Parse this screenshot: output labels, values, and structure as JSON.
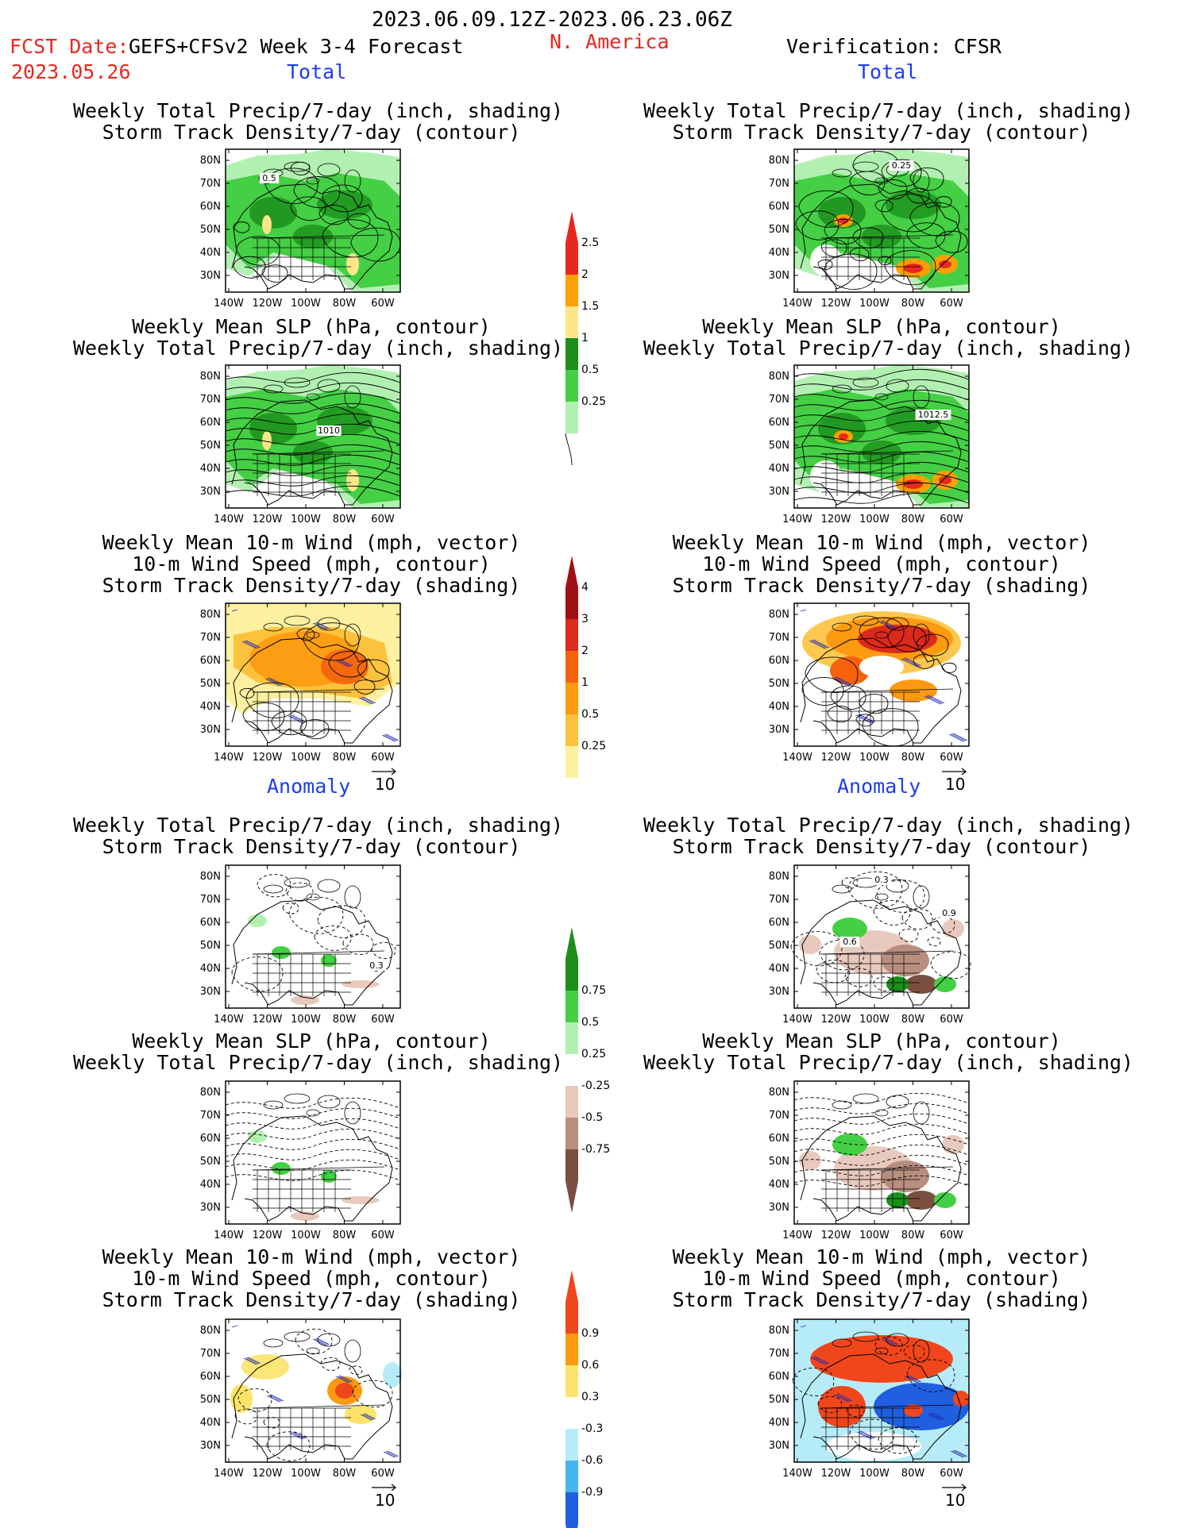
{
  "header": {
    "date_range": "2023.06.09.12Z-2023.06.23.06Z",
    "fcst_label": "FCST Date:",
    "model": "GEFS+CFSv2 Week 3-4 Forecast",
    "region": "N. America",
    "fcst_date": "2023.05.26",
    "verification": "Verification: CFSR"
  },
  "sections": {
    "total": "Total",
    "anomaly": "Anomaly"
  },
  "titles": {
    "precip_storm": [
      "Weekly Total Precip/7-day (inch, shading)",
      "Storm Track Density/7-day (contour)"
    ],
    "slp_precip": [
      "Weekly Mean SLP (hPa, contour)",
      "Weekly Total Precip/7-day (inch, shading)"
    ],
    "wind_storm": [
      "Weekly Mean 10-m Wind (mph, vector)",
      "10-m Wind Speed (mph, contour)",
      "Storm Track Density/7-day (shading)"
    ]
  },
  "axes": {
    "lat_ticks": [
      "80N",
      "70N",
      "60N",
      "50N",
      "40N",
      "30N"
    ],
    "lon_ticks": [
      "140W",
      "120W",
      "100W",
      "80W",
      "60W"
    ]
  },
  "map_labels": {
    "fc_total_precip": "0.5",
    "fc_total_slp": "1010",
    "ver_total_precip": "0.25",
    "ver_total_slp": "1012.5",
    "fc_anom_precip": "0.3",
    "ver_anom_precip": [
      "0.3",
      "0.9",
      "0.6"
    ]
  },
  "vector_ref": "10",
  "colorbars": {
    "precip_total": {
      "labels": [
        "2.5",
        "2",
        "1.5",
        "1",
        "0.5",
        "0.25"
      ],
      "colors": [
        "#e8281e",
        "#fda004",
        "#fde68a",
        "#1c8e1c",
        "#44cf44",
        "#b2f0b2"
      ]
    },
    "storm_total": {
      "labels": [
        "4",
        "3",
        "2",
        "1",
        "0.5",
        "0.25"
      ],
      "colors": [
        "#a11014",
        "#dc2a1c",
        "#f5620b",
        "#fd9a10",
        "#fdc23c",
        "#fdf0a0"
      ]
    },
    "precip_anom": {
      "labels": [
        "0.75",
        "0.5",
        "0.25",
        "-0.25",
        "-0.5",
        "-0.75"
      ],
      "colors": [
        "#1c8e1c",
        "#44cf44",
        "#b2f0b2",
        "#e8c9bd",
        "#b88e7e",
        "#7a4f40"
      ]
    },
    "storm_anom": {
      "labels": [
        "0.9",
        "0.6",
        "0.3",
        "-0.3",
        "-0.6",
        "-0.9"
      ],
      "colors": [
        "#f0461b",
        "#fd9a10",
        "#fde36a",
        "#b6ecf8",
        "#46b4f0",
        "#1f5fe0"
      ]
    }
  }
}
